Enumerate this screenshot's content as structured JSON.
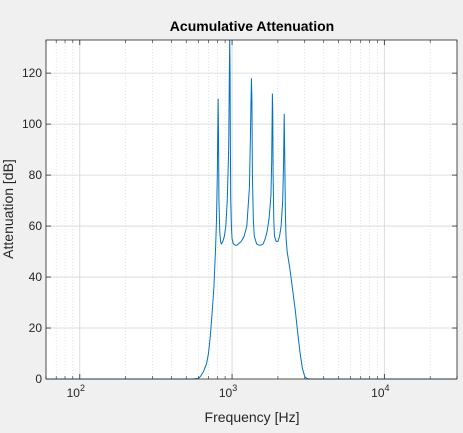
{
  "chart_data": {
    "type": "line",
    "title": "Acumulative Attenuation",
    "xlabel": "Frequency [Hz]",
    "ylabel": "Attenuation [dB]",
    "xscale": "log",
    "xlim": [
      60,
      30000
    ],
    "ylim": [
      0,
      133
    ],
    "grid": true,
    "x_ticks": [
      {
        "base": "10",
        "exp": "2",
        "value": 100
      },
      {
        "base": "10",
        "exp": "3",
        "value": 1000
      },
      {
        "base": "10",
        "exp": "4",
        "value": 10000
      }
    ],
    "y_ticks": [
      "0",
      "20",
      "40",
      "60",
      "80",
      "100",
      "120"
    ],
    "series": [
      {
        "color": "#0072bd",
        "x": [
          60,
          100,
          200,
          300,
          400,
          500,
          550,
          600,
          620,
          650,
          680,
          700,
          720,
          740,
          760,
          780,
          790,
          800,
          805,
          810,
          815,
          820,
          830,
          840,
          850,
          870,
          890,
          910,
          930,
          950,
          960,
          965,
          970,
          975,
          980,
          990,
          1000,
          1020,
          1050,
          1080,
          1100,
          1150,
          1200,
          1250,
          1300,
          1320,
          1340,
          1350,
          1360,
          1380,
          1400,
          1450,
          1500,
          1550,
          1600,
          1650,
          1700,
          1750,
          1800,
          1820,
          1840,
          1850,
          1860,
          1880,
          1900,
          1950,
          2000,
          2050,
          2100,
          2150,
          2180,
          2200,
          2220,
          2240,
          2260,
          2300,
          2400,
          2500,
          2600,
          2700,
          2800,
          2900,
          3000,
          3100,
          3200,
          3500,
          5000,
          10000,
          20000,
          30000
        ],
        "y": [
          0,
          0,
          0,
          0,
          0,
          0,
          0,
          0.2,
          1,
          3,
          6,
          10,
          17,
          26,
          36,
          52,
          62,
          80,
          95,
          110,
          95,
          70,
          58,
          54,
          53,
          54,
          56,
          60,
          70,
          90,
          120,
          133,
          120,
          90,
          70,
          60,
          55,
          53,
          52.5,
          52.5,
          53,
          54,
          56,
          60,
          75,
          95,
          118,
          110,
          80,
          62,
          56,
          53,
          52.5,
          52.5,
          53,
          55,
          58,
          63,
          72,
          85,
          112,
          105,
          80,
          62,
          56,
          54,
          54,
          56,
          60,
          70,
          85,
          104,
          85,
          65,
          56,
          50,
          43,
          35,
          27,
          18,
          10,
          4,
          1,
          0.2,
          0,
          0,
          0,
          0,
          0,
          0
        ]
      }
    ]
  }
}
